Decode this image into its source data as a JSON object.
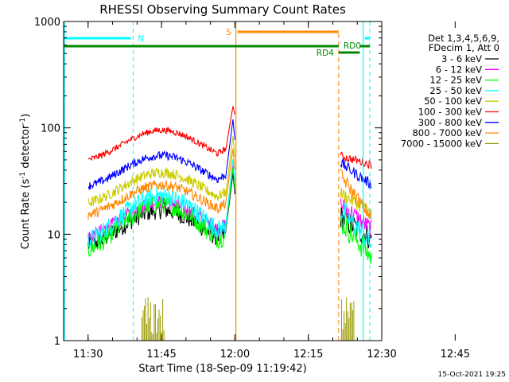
{
  "chart_data": {
    "type": "line",
    "title": "RHESSI Observing Summary Count Rates",
    "xlabel": "Start Time (18-Sep-09 11:19:42)",
    "ylabel_main": "Count Rate (s",
    "ylabel_sup1": "-1",
    "ylabel_mid": " detector",
    "ylabel_sup2": "-1",
    "ylabel_end": ")",
    "y_scale": "log",
    "ylim": [
      1,
      1000
    ],
    "xlim_minutes": [
      -5,
      60
    ],
    "x_ticks": [
      {
        "label": "11:30",
        "t": 0
      },
      {
        "label": "11:45",
        "t": 15
      },
      {
        "label": "12:00",
        "t": 30
      },
      {
        "label": "12:15",
        "t": 45
      },
      {
        "label": "12:30",
        "t": 60
      },
      {
        "label": "12:45",
        "t": 75
      }
    ],
    "y_ticks": [
      {
        "label": "1",
        "v": 1
      },
      {
        "label": "10",
        "v": 10
      },
      {
        "label": "100",
        "v": 100
      },
      {
        "label": "1000",
        "v": 1000
      }
    ],
    "legend_header": [
      "Det 1,3,4,5,6,9,",
      "FDecim 1, Att 0"
    ],
    "series": [
      {
        "name": "3 - 6 keV",
        "color": "#000000"
      },
      {
        "name": "6 - 12 keV",
        "color": "#ff00ff"
      },
      {
        "name": "12 - 25 keV",
        "color": "#00ff00"
      },
      {
        "name": "25 - 50 keV",
        "color": "#00ffff"
      },
      {
        "name": "50 - 100 keV",
        "color": "#cccc00"
      },
      {
        "name": "100 - 300 keV",
        "color": "#ff0000"
      },
      {
        "name": "300 - 800 keV",
        "color": "#0000ff"
      },
      {
        "name": "800 - 7000 keV",
        "color": "#ff8800"
      },
      {
        "name": "7000 - 15000 keV",
        "color": "#999900"
      }
    ],
    "annotations": {
      "night_label": "N",
      "saa_label": "S",
      "rd4_label": "RD4",
      "rd0_label": "RD0"
    },
    "timestamp": "15-Oct-2021 19:25"
  }
}
